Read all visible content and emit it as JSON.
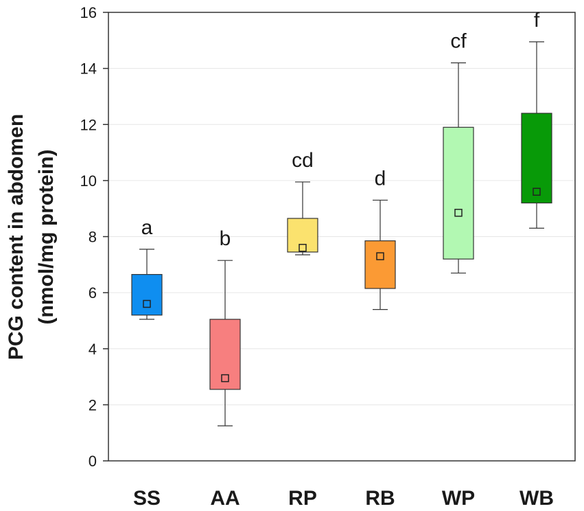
{
  "chart_data": {
    "type": "boxplot",
    "title": "",
    "xlabel": "",
    "ylabel_line1": "PCG content in abdomen",
    "ylabel_line2": "(nmol/mg protein)",
    "ylim": [
      0,
      16
    ],
    "yticks": [
      0,
      2,
      4,
      6,
      8,
      10,
      12,
      14,
      16
    ],
    "grid": true,
    "categories": [
      "SS",
      "AA",
      "RP",
      "RB",
      "WP",
      "WB"
    ],
    "boxes": [
      {
        "category": "SS",
        "whisker_low": 5.05,
        "q1": 5.2,
        "mean": 5.6,
        "q3": 6.65,
        "whisker_high": 7.55,
        "letter": "a",
        "color": "#0f8ef0"
      },
      {
        "category": "AA",
        "whisker_low": 1.25,
        "q1": 2.55,
        "mean": 2.95,
        "q3": 5.05,
        "whisker_high": 7.15,
        "letter": "b",
        "color": "#f77f7f"
      },
      {
        "category": "RP",
        "whisker_low": 7.35,
        "q1": 7.45,
        "mean": 7.6,
        "q3": 8.65,
        "whisker_high": 9.95,
        "letter": "cd",
        "color": "#fbe26e"
      },
      {
        "category": "RB",
        "whisker_low": 5.4,
        "q1": 6.15,
        "mean": 7.3,
        "q3": 7.85,
        "whisker_high": 9.3,
        "letter": "d",
        "color": "#fb9a34"
      },
      {
        "category": "WP",
        "whisker_low": 6.7,
        "q1": 7.2,
        "mean": 8.85,
        "q3": 11.9,
        "whisker_high": 14.2,
        "letter": "cf",
        "color": "#b2f8b2"
      },
      {
        "category": "WB",
        "whisker_low": 8.3,
        "q1": 9.2,
        "mean": 9.6,
        "q3": 12.4,
        "whisker_high": 14.95,
        "letter": "f",
        "color": "#089a08"
      }
    ]
  }
}
